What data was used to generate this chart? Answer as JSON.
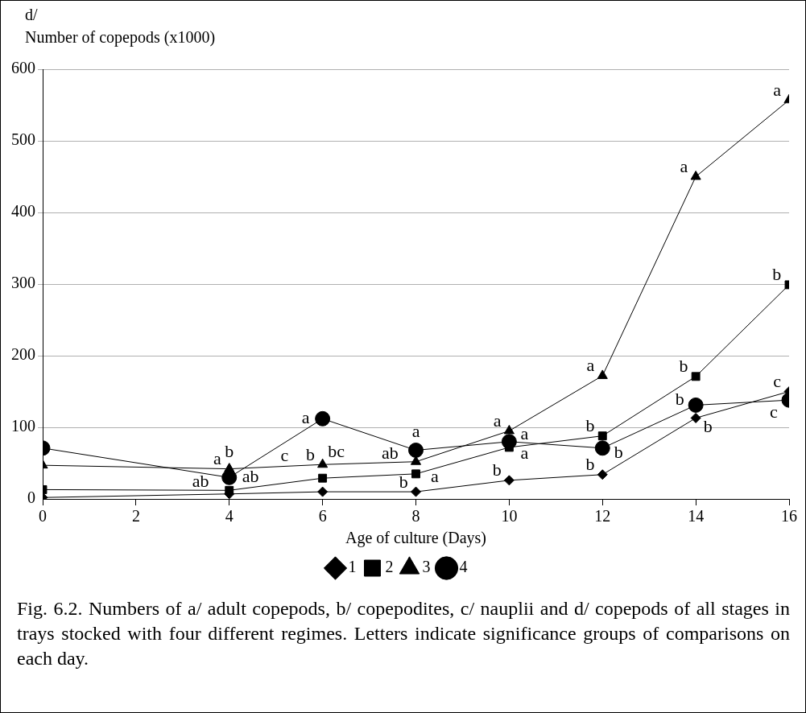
{
  "chart_data": {
    "type": "line",
    "title": "d/",
    "ylabel": "Number of copepods (x1000)",
    "xlabel": "Age of culture (Days)",
    "x": [
      0,
      4,
      6,
      8,
      10,
      12,
      14,
      16
    ],
    "series": [
      {
        "name": "1",
        "color": "#000000",
        "marker": "diamond",
        "values": [
          2,
          7,
          10,
          10,
          26,
          34,
          113,
          150
        ]
      },
      {
        "name": "2",
        "color": "#000000",
        "marker": "square",
        "values": [
          13,
          12,
          29,
          35,
          72,
          88,
          171,
          299
        ]
      },
      {
        "name": "3",
        "color": "#000000",
        "marker": "triangle",
        "values": [
          47,
          42,
          48,
          52,
          95,
          172,
          450,
          557
        ]
      },
      {
        "name": "4",
        "color": "#000000",
        "marker": "circle",
        "values": [
          71,
          30,
          112,
          68,
          80,
          71,
          131,
          138
        ]
      }
    ],
    "xlim": [
      0,
      16
    ],
    "xticks": [
      0,
      2,
      4,
      6,
      8,
      10,
      12,
      14,
      16
    ],
    "ylim": [
      0,
      600
    ],
    "yticks": [
      0,
      100,
      200,
      300,
      400,
      500,
      600
    ],
    "grid": "y",
    "legend": "bottom",
    "line_style": "solid",
    "annotations": [
      {
        "text": "a",
        "x": 4,
        "y": 42
      },
      {
        "text": "ab",
        "x": 4,
        "y": 30
      },
      {
        "text": "ab",
        "x": 4,
        "y": 12
      },
      {
        "text": "b",
        "x": 4,
        "y": 7
      },
      {
        "text": "a",
        "x": 6,
        "y": 112
      },
      {
        "text": "b",
        "x": 6,
        "y": 48
      },
      {
        "text": "bc",
        "x": 6,
        "y": 29
      },
      {
        "text": "c",
        "x": 6,
        "y": 10
      },
      {
        "text": "a",
        "x": 8,
        "y": 68
      },
      {
        "text": "a",
        "x": 8,
        "y": 52
      },
      {
        "text": "ab",
        "x": 8,
        "y": 35
      },
      {
        "text": "b",
        "x": 8,
        "y": 10
      },
      {
        "text": "a",
        "x": 10,
        "y": 95
      },
      {
        "text": "a",
        "x": 10,
        "y": 80
      },
      {
        "text": "a",
        "x": 10,
        "y": 72
      },
      {
        "text": "b",
        "x": 10,
        "y": 26
      },
      {
        "text": "a",
        "x": 12,
        "y": 172
      },
      {
        "text": "b",
        "x": 12,
        "y": 88
      },
      {
        "text": "b",
        "x": 12,
        "y": 71
      },
      {
        "text": "b",
        "x": 12,
        "y": 34
      },
      {
        "text": "a",
        "x": 14,
        "y": 450
      },
      {
        "text": "b",
        "x": 14,
        "y": 171
      },
      {
        "text": "b",
        "x": 14,
        "y": 131
      },
      {
        "text": "b",
        "x": 14,
        "y": 113
      },
      {
        "text": "a",
        "x": 16,
        "y": 557
      },
      {
        "text": "b",
        "x": 16,
        "y": 299
      },
      {
        "text": "c",
        "x": 16,
        "y": 150
      },
      {
        "text": "c",
        "x": 16,
        "y": 138
      },
      "Fig. 6.2. Numbers of a/ adult copepods, b/ copepodites, c/ nauplii and d/ copepods of all stages in trays stocked with four different regimes. Letters indicate significance groups of comparisons on each day."
    ]
  }
}
